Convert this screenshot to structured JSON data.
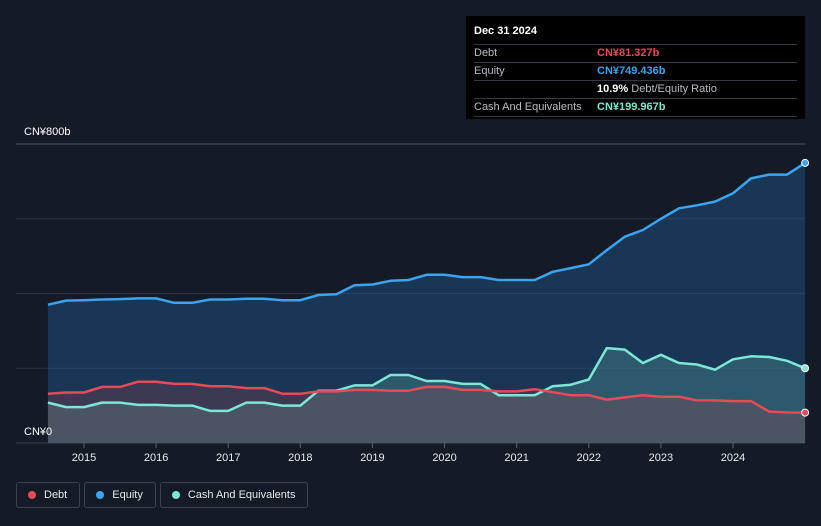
{
  "tooltip": {
    "date": "Dec 31 2024",
    "rows": [
      {
        "label": "Debt",
        "value": "CN¥81.327b",
        "color": "#e64b58"
      },
      {
        "label": "Equity",
        "value": "CN¥749.436b",
        "color": "#3aa4f0"
      },
      {
        "label": "",
        "value": "10.9%",
        "suffix": "Debt/Equity Ratio",
        "color": "#ffffff"
      },
      {
        "label": "Cash And Equivalents",
        "value": "CN¥199.967b",
        "color": "#7fe6d6"
      }
    ]
  },
  "legend": [
    {
      "label": "Debt",
      "color": "#e64b58"
    },
    {
      "label": "Equity",
      "color": "#3aa4f0"
    },
    {
      "label": "Cash And Equivalents",
      "color": "#7fe6d6"
    }
  ],
  "chart_data": {
    "type": "area",
    "ylim": [
      0,
      800
    ],
    "y_tick_labels": [
      "CN¥800b",
      "CN¥0"
    ],
    "x_tick_labels": [
      "2015",
      "2016",
      "2017",
      "2018",
      "2019",
      "2020",
      "2021",
      "2022",
      "2023",
      "2024"
    ],
    "x_range": [
      2014.5,
      2025.0
    ],
    "grid": true,
    "series": [
      {
        "name": "Equity",
        "color": "#3aa4f0",
        "x": [
          2014.5,
          2014.75,
          2015.0,
          2015.25,
          2015.5,
          2015.75,
          2016.0,
          2016.25,
          2016.5,
          2016.75,
          2017.0,
          2017.25,
          2017.5,
          2017.75,
          2018.0,
          2018.25,
          2018.5,
          2018.75,
          2019.0,
          2019.25,
          2019.5,
          2019.75,
          2020.0,
          2020.25,
          2020.5,
          2020.75,
          2021.0,
          2021.25,
          2021.5,
          2021.75,
          2022.0,
          2022.25,
          2022.5,
          2022.75,
          2023.0,
          2023.25,
          2023.5,
          2023.75,
          2024.0,
          2024.25,
          2024.5,
          2024.75,
          2025.0
        ],
        "values": [
          370,
          381,
          382,
          384,
          385,
          387,
          387,
          375,
          375,
          384,
          384,
          386,
          386,
          382,
          382,
          396,
          398,
          422,
          424,
          434,
          436,
          450,
          450,
          444,
          444,
          436,
          436,
          436,
          458,
          468,
          478,
          516,
          552,
          570,
          600,
          628,
          636,
          646,
          668,
          708,
          718,
          718,
          749.4
        ]
      },
      {
        "name": "Cash And Equivalents",
        "color": "#7fe6d6",
        "x": [
          2014.5,
          2014.75,
          2015.0,
          2015.25,
          2015.5,
          2015.75,
          2016.0,
          2016.25,
          2016.5,
          2016.75,
          2017.0,
          2017.25,
          2017.5,
          2017.75,
          2018.0,
          2018.25,
          2018.5,
          2018.75,
          2019.0,
          2019.25,
          2019.5,
          2019.75,
          2020.0,
          2020.25,
          2020.5,
          2020.75,
          2021.0,
          2021.25,
          2021.5,
          2021.75,
          2022.0,
          2022.25,
          2022.5,
          2022.75,
          2023.0,
          2023.25,
          2023.5,
          2023.75,
          2024.0,
          2024.25,
          2024.5,
          2024.75,
          2025.0
        ],
        "values": [
          108,
          96,
          96,
          108,
          108,
          102,
          102,
          100,
          100,
          86,
          86,
          108,
          108,
          100,
          100,
          140,
          140,
          154,
          154,
          182,
          182,
          166,
          166,
          158,
          158,
          128,
          128,
          128,
          152,
          156,
          170,
          254,
          250,
          214,
          236,
          214,
          210,
          196,
          224,
          232,
          230,
          220,
          200
        ]
      },
      {
        "name": "Debt",
        "color": "#e64b58",
        "x": [
          2014.5,
          2014.75,
          2015.0,
          2015.25,
          2015.5,
          2015.75,
          2016.0,
          2016.25,
          2016.5,
          2016.75,
          2017.0,
          2017.25,
          2017.5,
          2017.75,
          2018.0,
          2018.25,
          2018.5,
          2018.75,
          2019.0,
          2019.25,
          2019.5,
          2019.75,
          2020.0,
          2020.25,
          2020.5,
          2020.75,
          2021.0,
          2021.25,
          2021.5,
          2021.75,
          2022.0,
          2022.25,
          2022.5,
          2022.75,
          2023.0,
          2023.25,
          2023.5,
          2023.75,
          2024.0,
          2024.25,
          2024.5,
          2024.75,
          2025.0
        ],
        "values": [
          132,
          135,
          135,
          150,
          150,
          164,
          164,
          158,
          158,
          152,
          152,
          147,
          147,
          132,
          132,
          138,
          138,
          142,
          142,
          140,
          140,
          150,
          150,
          142,
          142,
          138,
          138,
          144,
          136,
          128,
          128,
          116,
          122,
          128,
          124,
          124,
          114,
          114,
          112,
          112,
          84,
          82,
          81.3
        ]
      }
    ]
  }
}
